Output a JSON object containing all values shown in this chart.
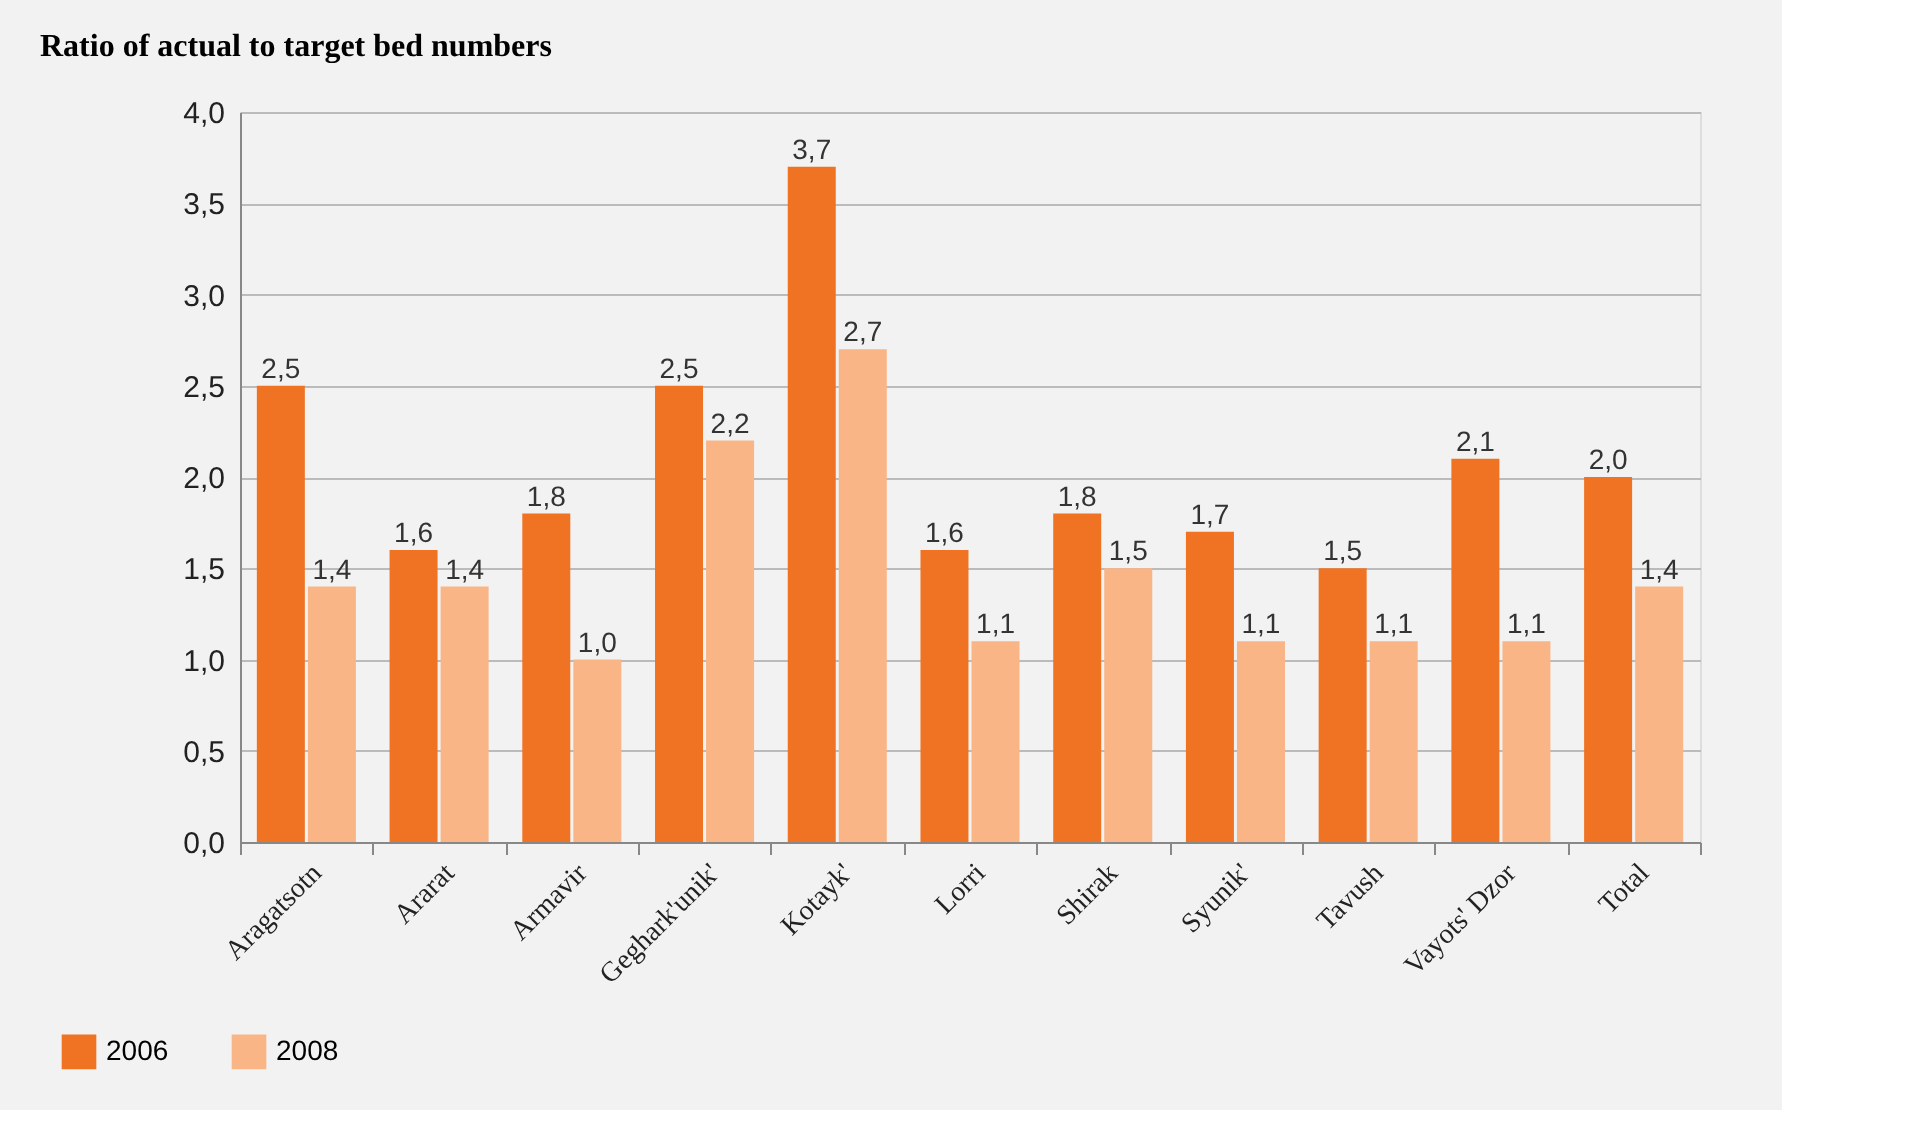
{
  "chart_data": {
    "type": "bar",
    "title": "Ratio of actual to target bed numbers",
    "categories": [
      "Aragatsotn",
      "Ararat",
      "Armavir",
      "Geghark'unik'",
      "Kotayk'",
      "Lorri",
      "Shirak",
      "Syunik'",
      "Tavush",
      "Vayots' Dzor",
      "Total"
    ],
    "series": [
      {
        "name": "2006",
        "color": "#f07323",
        "values": [
          2.5,
          1.6,
          1.8,
          2.5,
          3.7,
          1.6,
          1.8,
          1.7,
          1.5,
          2.1,
          2.0
        ],
        "value_labels": [
          "2,5",
          "1,6",
          "1,8",
          "2,5",
          "3,7",
          "1,6",
          "1,8",
          "1,7",
          "1,5",
          "2,1",
          "2,0"
        ]
      },
      {
        "name": "2008",
        "color": "#f9b586",
        "values": [
          1.4,
          1.4,
          1.0,
          2.2,
          2.7,
          1.1,
          1.5,
          1.1,
          1.1,
          1.1,
          1.4
        ],
        "value_labels": [
          "1,4",
          "1,4",
          "1,0",
          "2,2",
          "2,7",
          "1,1",
          "1,5",
          "1,1",
          "1,1",
          "1,1",
          "1,4"
        ]
      }
    ],
    "ylim": [
      0,
      4
    ],
    "yticks": [
      {
        "value": 0,
        "label": "0,0"
      },
      {
        "value": 0.5,
        "label": "0,5"
      },
      {
        "value": 1,
        "label": "1,0"
      },
      {
        "value": 1.5,
        "label": "1,5"
      },
      {
        "value": 2,
        "label": "2,0"
      },
      {
        "value": 2.5,
        "label": "2,5"
      },
      {
        "value": 3,
        "label": "3,0"
      },
      {
        "value": 3.5,
        "label": "3,5"
      },
      {
        "value": 4,
        "label": "4,0"
      }
    ],
    "grid": "y",
    "legend": "bottom left"
  }
}
